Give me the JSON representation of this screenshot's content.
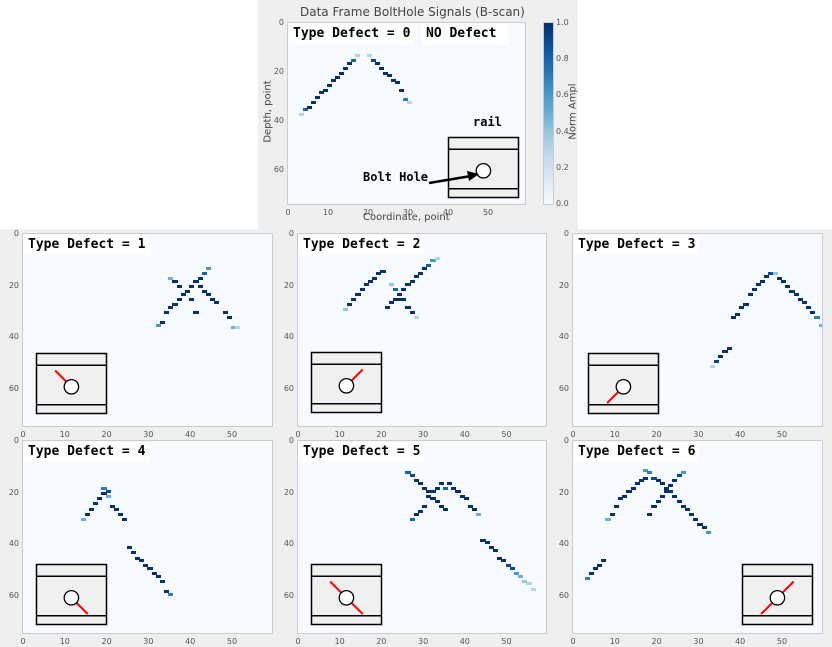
{
  "figure": {
    "background": "#efefef",
    "plot_background": "#f7fbff",
    "colormap": "Blues"
  },
  "chart_data": [
    {
      "type": "heatmap",
      "id": "type0",
      "title": "Data Frame BoltHole Signals (B-scan)",
      "xlabel": "Coordinate, point",
      "ylabel": "Depth, point",
      "annotation": "Type Defect = 0  NO Defect",
      "label_part1": "Type Defect = 0",
      "label_part2": "NO Defect",
      "xlim": [
        0,
        59
      ],
      "ylim": [
        74,
        0
      ],
      "xticks": [
        "0",
        "10",
        "20",
        "30",
        "40",
        "50"
      ],
      "yticks": [
        "0",
        "20",
        "40",
        "60"
      ],
      "colorbar": {
        "label": "Norm Ampl",
        "ticks": [
          "0.0",
          "0.2",
          "0.4",
          "0.6",
          "0.8",
          "1.0"
        ],
        "range": [
          0.0,
          1.0
        ]
      },
      "inset": {
        "rail_label": "rail",
        "hole_label": "Bolt Hole",
        "crack": "none"
      },
      "points": [
        [
          3,
          37,
          0.3
        ],
        [
          4,
          35,
          0.8
        ],
        [
          5,
          34,
          1
        ],
        [
          6,
          32,
          1
        ],
        [
          7,
          30,
          1
        ],
        [
          8,
          28,
          1
        ],
        [
          9,
          27,
          1
        ],
        [
          10,
          25,
          1
        ],
        [
          11,
          23,
          1
        ],
        [
          12,
          22,
          1
        ],
        [
          13,
          20,
          1
        ],
        [
          14,
          18,
          1
        ],
        [
          15,
          16,
          1
        ],
        [
          16,
          15,
          0.8
        ],
        [
          17,
          13,
          0.3
        ],
        [
          20,
          13,
          0.3
        ],
        [
          21,
          15,
          0.9
        ],
        [
          22,
          16,
          1
        ],
        [
          23,
          18,
          1
        ],
        [
          24,
          20,
          1
        ],
        [
          25,
          21,
          1
        ],
        [
          26,
          23,
          1
        ],
        [
          27,
          24,
          1
        ],
        [
          28,
          27,
          1
        ],
        [
          29,
          31,
          0.7
        ],
        [
          30,
          32,
          0.3
        ]
      ]
    },
    {
      "type": "heatmap",
      "id": "type1",
      "annotation": "Type Defect = 1",
      "xlim": [
        0,
        59
      ],
      "ylim": [
        74,
        0
      ],
      "xticks": [
        "0",
        "10",
        "20",
        "30",
        "40",
        "50"
      ],
      "yticks": [
        "0",
        "20",
        "40",
        "60"
      ],
      "inset": {
        "crack": "upper-left"
      },
      "points": [
        [
          32,
          35,
          0.6
        ],
        [
          33,
          34,
          1
        ],
        [
          34,
          30,
          1
        ],
        [
          35,
          28,
          1
        ],
        [
          36,
          27,
          1
        ],
        [
          37,
          25,
          1
        ],
        [
          38,
          23,
          1
        ],
        [
          39,
          22,
          1
        ],
        [
          40,
          20,
          1
        ],
        [
          41,
          18,
          1
        ],
        [
          42,
          17,
          1
        ],
        [
          43,
          15,
          0.8
        ],
        [
          44,
          13,
          0.6
        ],
        [
          35,
          17,
          0.5
        ],
        [
          36,
          18,
          1
        ],
        [
          37,
          20,
          1
        ],
        [
          40,
          25,
          1
        ],
        [
          41,
          30,
          1
        ],
        [
          42,
          20,
          1
        ],
        [
          43,
          22,
          1
        ],
        [
          44,
          23,
          1
        ],
        [
          45,
          25,
          1
        ],
        [
          46,
          26,
          1
        ],
        [
          48,
          30,
          1
        ],
        [
          49,
          32,
          1
        ],
        [
          50,
          36,
          0.5
        ],
        [
          51,
          36,
          0.3
        ]
      ]
    },
    {
      "type": "heatmap",
      "id": "type2",
      "annotation": "Type Defect = 2",
      "xlim": [
        0,
        59
      ],
      "ylim": [
        74,
        0
      ],
      "xticks": [
        "0",
        "10",
        "20",
        "30",
        "40",
        "50"
      ],
      "yticks": [
        "0",
        "20",
        "40",
        "60"
      ],
      "inset": {
        "crack": "upper-right"
      },
      "points": [
        [
          11,
          29,
          0.4
        ],
        [
          12,
          27,
          1
        ],
        [
          13,
          25,
          1
        ],
        [
          14,
          23,
          1
        ],
        [
          15,
          21,
          1
        ],
        [
          16,
          19,
          1
        ],
        [
          17,
          18,
          1
        ],
        [
          18,
          17,
          1
        ],
        [
          19,
          15,
          1
        ],
        [
          20,
          14,
          1
        ],
        [
          21,
          28,
          1
        ],
        [
          22,
          26,
          1
        ],
        [
          23,
          25,
          1
        ],
        [
          24,
          23,
          1
        ],
        [
          25,
          21,
          1
        ],
        [
          26,
          19,
          1
        ],
        [
          27,
          18,
          1
        ],
        [
          28,
          16,
          1
        ],
        [
          29,
          15,
          1
        ],
        [
          30,
          13,
          1
        ],
        [
          31,
          12,
          0.8
        ],
        [
          32,
          10,
          0.6
        ],
        [
          33,
          9,
          0.3
        ],
        [
          22,
          19,
          0.4
        ],
        [
          23,
          21,
          0.8
        ],
        [
          24,
          25,
          1
        ],
        [
          25,
          25,
          1
        ],
        [
          26,
          28,
          1
        ],
        [
          27,
          30,
          1
        ],
        [
          28,
          32,
          0.3
        ]
      ]
    },
    {
      "type": "heatmap",
      "id": "type3",
      "annotation": "Type Defect = 3",
      "xlim": [
        0,
        59
      ],
      "ylim": [
        74,
        0
      ],
      "xticks": [
        "0",
        "10",
        "20",
        "30",
        "40",
        "50"
      ],
      "yticks": [
        "0",
        "20",
        "40",
        "60"
      ],
      "inset": {
        "crack": "lower-left"
      },
      "points": [
        [
          33,
          51,
          0.3
        ],
        [
          34,
          49,
          0.9
        ],
        [
          35,
          47,
          1
        ],
        [
          36,
          45,
          1
        ],
        [
          37,
          44,
          1
        ],
        [
          38,
          32,
          1
        ],
        [
          39,
          31,
          1
        ],
        [
          40,
          28,
          1
        ],
        [
          41,
          27,
          1
        ],
        [
          42,
          23,
          1
        ],
        [
          43,
          21,
          1
        ],
        [
          44,
          19,
          1
        ],
        [
          45,
          18,
          1
        ],
        [
          46,
          16,
          1
        ],
        [
          47,
          15,
          0.9
        ],
        [
          48,
          15,
          0.4
        ],
        [
          49,
          17,
          1
        ],
        [
          50,
          18,
          1
        ],
        [
          51,
          20,
          1
        ],
        [
          52,
          22,
          1
        ],
        [
          53,
          23,
          1
        ],
        [
          54,
          25,
          1
        ],
        [
          55,
          26,
          1
        ],
        [
          56,
          28,
          1
        ],
        [
          57,
          30,
          1
        ],
        [
          58,
          32,
          0.7
        ],
        [
          59,
          35,
          0.5
        ]
      ]
    },
    {
      "type": "heatmap",
      "id": "type4",
      "annotation": "Type Defect = 4",
      "xlim": [
        0,
        59
      ],
      "ylim": [
        74,
        0
      ],
      "xticks": [
        "0",
        "10",
        "20",
        "30",
        "40",
        "50"
      ],
      "yticks": [
        "0",
        "20",
        "40",
        "60"
      ],
      "inset": {
        "crack": "lower-right"
      },
      "points": [
        [
          14,
          30,
          0.5
        ],
        [
          15,
          28,
          1
        ],
        [
          16,
          26,
          1
        ],
        [
          17,
          24,
          1
        ],
        [
          18,
          22,
          1
        ],
        [
          19,
          20,
          1
        ],
        [
          19,
          18,
          0.7
        ],
        [
          20,
          19,
          0.9
        ],
        [
          20,
          21,
          0.5
        ],
        [
          21,
          25,
          1
        ],
        [
          22,
          26,
          1
        ],
        [
          23,
          28,
          1
        ],
        [
          24,
          30,
          1
        ],
        [
          25,
          41,
          1
        ],
        [
          26,
          43,
          1
        ],
        [
          27,
          45,
          1
        ],
        [
          28,
          46,
          1
        ],
        [
          29,
          48,
          1
        ],
        [
          30,
          49,
          1
        ],
        [
          31,
          51,
          1
        ],
        [
          32,
          52,
          1
        ],
        [
          33,
          54,
          1
        ],
        [
          34,
          58,
          1
        ],
        [
          35,
          59,
          0.7
        ]
      ]
    },
    {
      "type": "heatmap",
      "id": "type5",
      "annotation": "Type Defect = 5",
      "xlim": [
        0,
        59
      ],
      "ylim": [
        74,
        0
      ],
      "xticks": [
        "0",
        "10",
        "20",
        "30",
        "40",
        "50"
      ],
      "yticks": [
        "0",
        "20",
        "40",
        "60"
      ],
      "inset": {
        "crack": "diagonal-both"
      },
      "points": [
        [
          26,
          12,
          0.8
        ],
        [
          27,
          13,
          0.9
        ],
        [
          28,
          15,
          1
        ],
        [
          29,
          16,
          1
        ],
        [
          30,
          18,
          1
        ],
        [
          31,
          19,
          1
        ],
        [
          32,
          19,
          1
        ],
        [
          33,
          18,
          1
        ],
        [
          34,
          16,
          1
        ],
        [
          35,
          18,
          0.8
        ],
        [
          36,
          16,
          1
        ],
        [
          37,
          18,
          1
        ],
        [
          38,
          19,
          1
        ],
        [
          39,
          21,
          1
        ],
        [
          40,
          22,
          1
        ],
        [
          41,
          25,
          1
        ],
        [
          42,
          26,
          1
        ],
        [
          43,
          28,
          0.5
        ],
        [
          27,
          30,
          0.8
        ],
        [
          28,
          28,
          1
        ],
        [
          29,
          27,
          1
        ],
        [
          30,
          25,
          1
        ],
        [
          31,
          21,
          1
        ],
        [
          32,
          22,
          1
        ],
        [
          33,
          23,
          1
        ],
        [
          34,
          25,
          1
        ],
        [
          35,
          26,
          1
        ],
        [
          44,
          38,
          1
        ],
        [
          45,
          39,
          1
        ],
        [
          46,
          41,
          1
        ],
        [
          47,
          42,
          1
        ],
        [
          48,
          45,
          1
        ],
        [
          49,
          46,
          1
        ],
        [
          50,
          48,
          0.9
        ],
        [
          51,
          49,
          0.9
        ],
        [
          52,
          51,
          0.6
        ],
        [
          53,
          52,
          0.5
        ],
        [
          54,
          54,
          0.4
        ],
        [
          55,
          55,
          0.3
        ],
        [
          56,
          57,
          0.3
        ]
      ]
    },
    {
      "type": "heatmap",
      "id": "type6",
      "annotation": "Type Defect = 6",
      "xlim": [
        0,
        59
      ],
      "ylim": [
        74,
        0
      ],
      "xticks": [
        "0",
        "10",
        "20",
        "30",
        "40",
        "50"
      ],
      "yticks": [
        "0",
        "20",
        "40",
        "60"
      ],
      "inset": {
        "crack": "diagonal-both-right"
      },
      "points": [
        [
          3,
          53,
          0.7
        ],
        [
          4,
          51,
          1
        ],
        [
          5,
          49,
          1
        ],
        [
          6,
          48,
          1
        ],
        [
          7,
          46,
          1
        ],
        [
          8,
          30,
          0.5
        ],
        [
          9,
          28,
          1
        ],
        [
          10,
          25,
          1
        ],
        [
          11,
          22,
          1
        ],
        [
          12,
          21,
          1
        ],
        [
          13,
          19,
          1
        ],
        [
          14,
          18,
          1
        ],
        [
          15,
          16,
          1
        ],
        [
          16,
          15,
          1
        ],
        [
          17,
          14,
          1
        ],
        [
          17,
          11,
          0.6
        ],
        [
          18,
          12,
          0.7
        ],
        [
          19,
          14,
          0.9
        ],
        [
          20,
          15,
          1
        ],
        [
          21,
          16,
          1
        ],
        [
          22,
          18,
          1
        ],
        [
          23,
          19,
          1
        ],
        [
          24,
          21,
          1
        ],
        [
          25,
          23,
          1
        ],
        [
          26,
          25,
          1
        ],
        [
          27,
          26,
          1
        ],
        [
          28,
          28,
          1
        ],
        [
          29,
          30,
          1
        ],
        [
          30,
          32,
          1
        ],
        [
          31,
          33,
          1
        ],
        [
          32,
          35,
          0.6
        ],
        [
          18,
          28,
          1
        ],
        [
          19,
          25,
          1
        ],
        [
          20,
          23,
          1
        ],
        [
          21,
          21,
          1
        ],
        [
          22,
          19,
          1
        ],
        [
          23,
          17,
          1
        ],
        [
          24,
          15,
          1
        ],
        [
          25,
          13,
          0.9
        ],
        [
          26,
          12,
          0.6
        ]
      ]
    }
  ]
}
